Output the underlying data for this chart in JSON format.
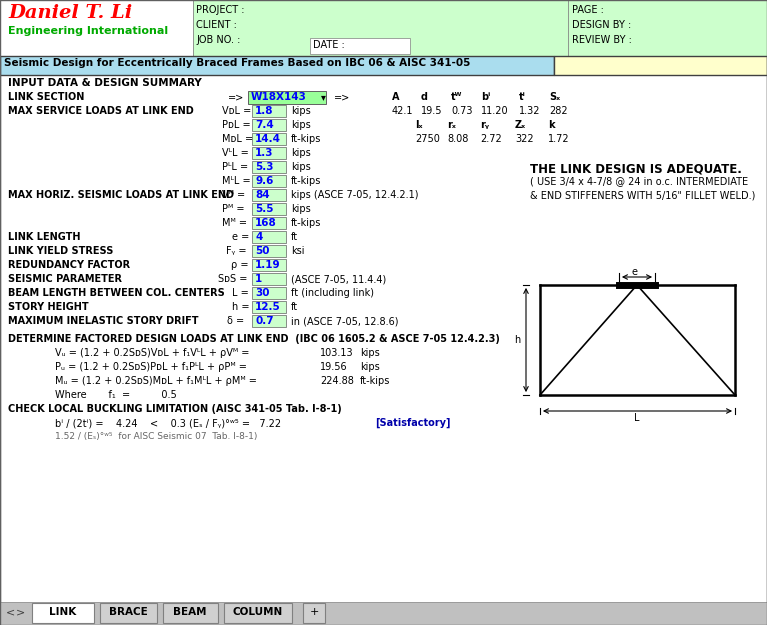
{
  "title": "Seismic Design for Eccentrically Braced Frames Based on IBC 06 & AISC 341-05",
  "company_name": "Daniel T. Li",
  "company_sub": "Engineering International",
  "bg_white": "#FFFFFF",
  "bg_lightgreen": "#CCFFCC",
  "bg_lightyellow": "#FFFFCC",
  "bg_lightcyan": "#AADDEE",
  "bg_green_input": "#99FF99",
  "color_red": "#FF0000",
  "color_blue": "#0000FF",
  "color_black": "#000000",
  "section_vals1": [
    "42.1",
    "19.5",
    "0.73",
    "11.20",
    "1.32",
    "282"
  ],
  "section_vals2": [
    "2750",
    "8.08",
    "2.72",
    "322",
    "1.72"
  ],
  "vdl": "1.8",
  "pdl": "7.4",
  "mdl": "14.4",
  "vll": "1.3",
  "pll": "5.3",
  "mll": "9.6",
  "ve": "84",
  "pe": "5.5",
  "me": "168",
  "link_length_val": "4",
  "yield_stress_val": "50",
  "redundancy_val": "1.19",
  "seismic_param_val": "1",
  "beam_length_val": "30",
  "story_height_val": "12.5",
  "max_drift_val": "0.7",
  "vu_val": "103.13",
  "pu_val": "19.56",
  "mu_val": "224.88",
  "tabs": [
    "LINK",
    "BRACE",
    "BEAM",
    "COLUMN"
  ]
}
